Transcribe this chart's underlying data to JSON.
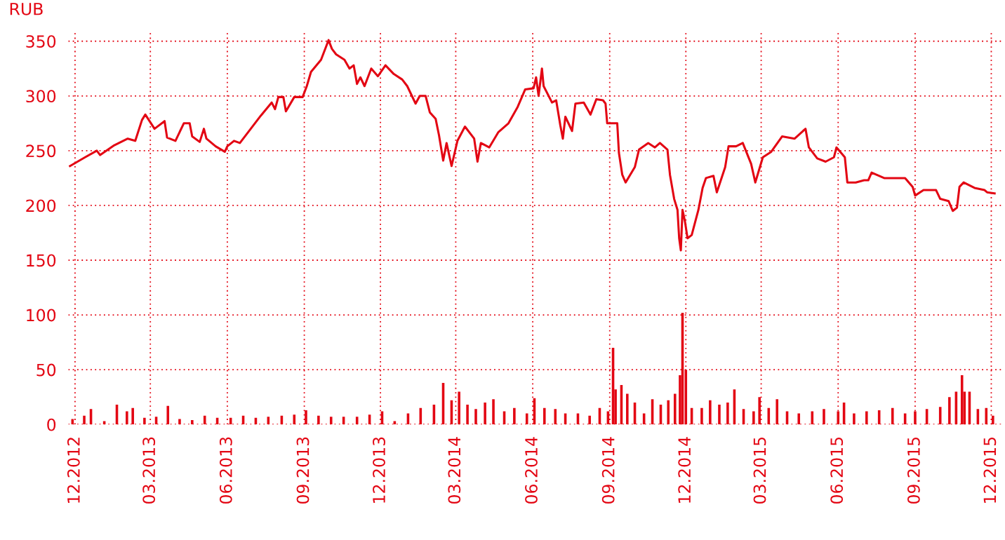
{
  "chart_data": {
    "type": "line",
    "ylabel": "RUB",
    "xlim": [
      "2012-11-23",
      "2015-12-15"
    ],
    "ylim": [
      0,
      360
    ],
    "yticks": [
      0,
      50,
      100,
      150,
      200,
      250,
      300,
      350
    ],
    "xticks": [
      {
        "value": "2012-12-01",
        "label": "12.2012"
      },
      {
        "value": "2013-03-01",
        "label": "03.2013"
      },
      {
        "value": "2013-06-01",
        "label": "06.2013"
      },
      {
        "value": "2013-09-01",
        "label": "09.2013"
      },
      {
        "value": "2013-12-01",
        "label": "12.2013"
      },
      {
        "value": "2014-03-01",
        "label": "03.2014"
      },
      {
        "value": "2014-06-01",
        "label": "06.2014"
      },
      {
        "value": "2014-09-01",
        "label": "09.2014"
      },
      {
        "value": "2014-12-01",
        "label": "12.2014"
      },
      {
        "value": "2015-03-01",
        "label": "03.2015"
      },
      {
        "value": "2015-06-01",
        "label": "06.2015"
      },
      {
        "value": "2015-09-01",
        "label": "09.2015"
      },
      {
        "value": "2015-12-01",
        "label": "12.2015"
      }
    ],
    "grid": true,
    "line_style": "solid",
    "marker": "none",
    "series": [
      {
        "color": "#e30613",
        "x": [
          "2012-11-25",
          "2012-12-13",
          "2012-12-27",
          "2012-12-31",
          "2013-01-17",
          "2013-02-02",
          "2013-02-11",
          "2013-02-19",
          "2013-02-23",
          "2013-03-06",
          "2013-03-18",
          "2013-03-21",
          "2013-03-31",
          "2013-04-10",
          "2013-04-17",
          "2013-04-20",
          "2013-04-29",
          "2013-05-04",
          "2013-05-07",
          "2013-05-18",
          "2013-05-29",
          "2013-06-01",
          "2013-06-09",
          "2013-06-16",
          "2013-06-29",
          "2013-07-11",
          "2013-07-24",
          "2013-07-28",
          "2013-08-01",
          "2013-08-07",
          "2013-08-10",
          "2013-08-20",
          "2013-08-30",
          "2013-09-04",
          "2013-09-09",
          "2013-09-21",
          "2013-09-30",
          "2013-10-04",
          "2013-10-09",
          "2013-10-19",
          "2013-10-25",
          "2013-10-30",
          "2013-11-03",
          "2013-11-07",
          "2013-11-12",
          "2013-11-20",
          "2013-11-28",
          "2013-12-07",
          "2013-12-17",
          "2013-12-27",
          "2014-01-02",
          "2014-01-12",
          "2014-01-17",
          "2014-01-24",
          "2014-01-29",
          "2014-02-05",
          "2014-02-09",
          "2014-02-14",
          "2014-02-18",
          "2014-02-24",
          "2014-03-03",
          "2014-03-12",
          "2014-03-23",
          "2014-03-27",
          "2014-03-31",
          "2014-04-10",
          "2014-04-21",
          "2014-05-03",
          "2014-05-14",
          "2014-05-23",
          "2014-06-02",
          "2014-06-05",
          "2014-06-08",
          "2014-06-12",
          "2014-06-14",
          "2014-06-24",
          "2014-06-29",
          "2014-07-04",
          "2014-07-07",
          "2014-07-10",
          "2014-07-18",
          "2014-07-22",
          "2014-08-01",
          "2014-08-09",
          "2014-08-16",
          "2014-08-24",
          "2014-08-27",
          "2014-08-29",
          "2014-09-10",
          "2014-09-12",
          "2014-09-16",
          "2014-09-20",
          "2014-10-01",
          "2014-10-06",
          "2014-10-17",
          "2014-10-25",
          "2014-10-31",
          "2014-11-09",
          "2014-11-12",
          "2014-11-17",
          "2014-11-21",
          "2014-11-23",
          "2014-11-25",
          "2014-11-27",
          "2014-11-30",
          "2014-12-03",
          "2014-12-08",
          "2014-12-16",
          "2014-12-21",
          "2014-12-25",
          "2015-01-03",
          "2015-01-07",
          "2015-01-17",
          "2015-01-21",
          "2015-01-30",
          "2015-02-07",
          "2015-02-17",
          "2015-02-22",
          "2015-03-03",
          "2015-03-13",
          "2015-03-26",
          "2015-04-10",
          "2015-04-20",
          "2015-04-23",
          "2015-04-27",
          "2015-05-07",
          "2015-05-17",
          "2015-05-27",
          "2015-05-30",
          "2015-06-09",
          "2015-06-12",
          "2015-06-22",
          "2015-07-02",
          "2015-07-07",
          "2015-07-11",
          "2015-07-26",
          "2015-08-10",
          "2015-08-20",
          "2015-08-29",
          "2015-09-01",
          "2015-09-11",
          "2015-09-26",
          "2015-10-01",
          "2015-10-11",
          "2015-10-16",
          "2015-10-21",
          "2015-10-24",
          "2015-10-29",
          "2015-11-11",
          "2015-11-23",
          "2015-11-26",
          "2015-12-05"
        ],
        "values": [
          236,
          244,
          250,
          246,
          255,
          261,
          259,
          278,
          283,
          270,
          277,
          262,
          259,
          275,
          275,
          263,
          258,
          270,
          261,
          254,
          249,
          254,
          259,
          257,
          270,
          282,
          294,
          288,
          299,
          299,
          286,
          299,
          299,
          309,
          322,
          333,
          351,
          343,
          338,
          333,
          325,
          328,
          311,
          317,
          309,
          325,
          318,
          328,
          320,
          315,
          309,
          293,
          300,
          300,
          285,
          279,
          264,
          241,
          257,
          236,
          259,
          272,
          261,
          240,
          257,
          253,
          267,
          275,
          290,
          306,
          307,
          317,
          300,
          325,
          309,
          294,
          296,
          273,
          261,
          281,
          268,
          293,
          294,
          283,
          297,
          296,
          293,
          275,
          275,
          248,
          228,
          221,
          235,
          251,
          257,
          253,
          257,
          251,
          228,
          206,
          196,
          170,
          159,
          196,
          185,
          170,
          173,
          196,
          216,
          225,
          227,
          212,
          235,
          254,
          254,
          257,
          238,
          221,
          244,
          249,
          263,
          261,
          268,
          270,
          253,
          243,
          240,
          244,
          253,
          244,
          221,
          221,
          223,
          223,
          230,
          225,
          225,
          225,
          217,
          209,
          214,
          214,
          206,
          204,
          195,
          198,
          217,
          221,
          216,
          214,
          212,
          211
        ]
      },
      {
        "type": "bar",
        "color": "#e30613",
        "x": [
          "2012-11-28",
          "2012-12-12",
          "2012-12-20",
          "2013-01-05",
          "2013-01-20",
          "2013-02-01",
          "2013-02-08",
          "2013-02-22",
          "2013-03-08",
          "2013-03-22",
          "2013-04-05",
          "2013-04-20",
          "2013-05-05",
          "2013-05-20",
          "2013-06-05",
          "2013-06-20",
          "2013-07-05",
          "2013-07-20",
          "2013-08-05",
          "2013-08-20",
          "2013-09-03",
          "2013-09-18",
          "2013-10-03",
          "2013-10-18",
          "2013-11-03",
          "2013-11-18",
          "2013-12-03",
          "2013-12-18",
          "2014-01-03",
          "2014-01-18",
          "2014-02-03",
          "2014-02-14",
          "2014-02-24",
          "2014-03-05",
          "2014-03-15",
          "2014-03-25",
          "2014-04-05",
          "2014-04-15",
          "2014-04-28",
          "2014-05-10",
          "2014-05-25",
          "2014-06-03",
          "2014-06-15",
          "2014-06-28",
          "2014-07-10",
          "2014-07-25",
          "2014-08-08",
          "2014-08-20",
          "2014-08-30",
          "2014-09-05",
          "2014-09-08",
          "2014-09-15",
          "2014-09-22",
          "2014-10-01",
          "2014-10-12",
          "2014-10-22",
          "2014-11-01",
          "2014-11-10",
          "2014-11-18",
          "2014-11-24",
          "2014-11-27",
          "2014-12-01",
          "2014-12-08",
          "2014-12-20",
          "2014-12-30",
          "2015-01-10",
          "2015-01-20",
          "2015-01-28",
          "2015-02-08",
          "2015-02-20",
          "2015-02-27",
          "2015-03-10",
          "2015-03-20",
          "2015-04-01",
          "2015-04-15",
          "2015-05-01",
          "2015-05-15",
          "2015-06-01",
          "2015-06-08",
          "2015-06-20",
          "2015-07-05",
          "2015-07-20",
          "2015-08-05",
          "2015-08-20",
          "2015-09-01",
          "2015-09-15",
          "2015-10-01",
          "2015-10-12",
          "2015-10-20",
          "2015-10-27",
          "2015-10-30",
          "2015-11-05",
          "2015-11-15",
          "2015-11-25",
          "2015-12-03"
        ],
        "values": [
          5,
          8,
          14,
          3,
          18,
          12,
          15,
          6,
          7,
          17,
          5,
          4,
          8,
          6,
          6,
          8,
          6,
          7,
          8,
          9,
          13,
          8,
          7,
          7,
          7,
          9,
          12,
          3,
          10,
          15,
          18,
          38,
          22,
          30,
          18,
          14,
          20,
          23,
          12,
          15,
          10,
          24,
          15,
          14,
          10,
          10,
          8,
          15,
          12,
          70,
          32,
          36,
          28,
          20,
          10,
          23,
          18,
          22,
          28,
          45,
          102,
          50,
          15,
          15,
          22,
          18,
          20,
          32,
          14,
          12,
          25,
          15,
          23,
          12,
          10,
          12,
          14,
          12,
          20,
          10,
          12,
          13,
          15,
          10,
          12,
          14,
          16,
          25,
          30,
          45,
          30,
          30,
          14,
          15,
          8
        ]
      }
    ]
  }
}
